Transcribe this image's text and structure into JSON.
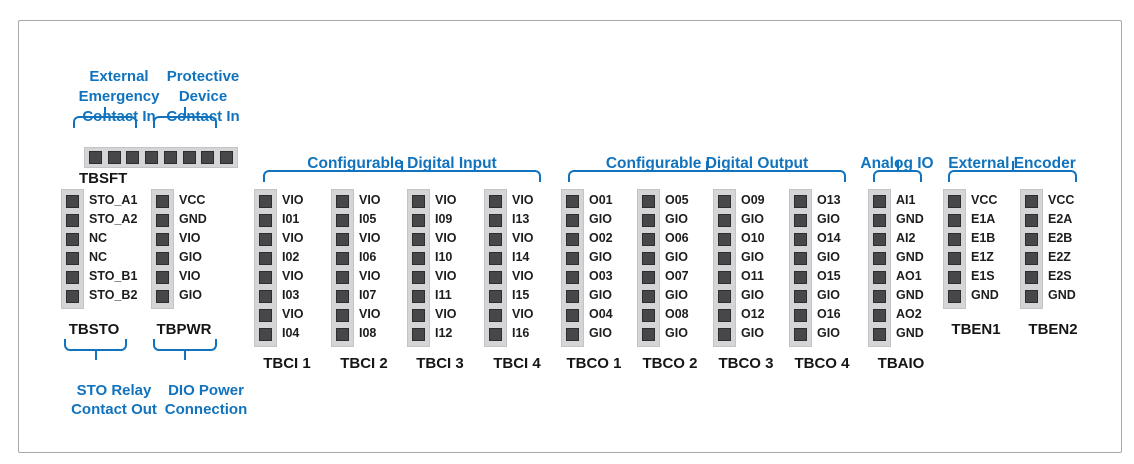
{
  "palette": {
    "blue": "#1173bd",
    "black": "#1d1d1f",
    "pin_fill": "#47474a",
    "pin_border": "#2d2d30",
    "strip_bg": "#d5d5d7",
    "frame_border": "#a9a9ab"
  },
  "tbsft": {
    "name": "TBSFT",
    "pin_count": 8,
    "callouts": [
      {
        "lines": [
          "External",
          "Emergency",
          "Contact In"
        ]
      },
      {
        "lines": [
          "Protective",
          "Device",
          "Contact In"
        ]
      }
    ]
  },
  "left_blocks": [
    {
      "name": "TBSTO",
      "pins": [
        "STO_A1",
        "STO_A2",
        "NC",
        "NC",
        "STO_B1",
        "STO_B2"
      ],
      "callout_lines": [
        "STO Relay",
        "Contact Out"
      ]
    },
    {
      "name": "TBPWR",
      "pins": [
        "VCC",
        "GND",
        "VIO",
        "GIO",
        "VIO",
        "GIO"
      ],
      "callout_lines": [
        "DIO Power",
        "Connection"
      ]
    }
  ],
  "groups": [
    {
      "header": "Configurable Digital Input",
      "columns": [
        {
          "name": "TBCI 1",
          "pins": [
            "VIO",
            "I01",
            "VIO",
            "I02",
            "VIO",
            "I03",
            "VIO",
            "I04"
          ]
        },
        {
          "name": "TBCI 2",
          "pins": [
            "VIO",
            "I05",
            "VIO",
            "I06",
            "VIO",
            "I07",
            "VIO",
            "I08"
          ]
        },
        {
          "name": "TBCI 3",
          "pins": [
            "VIO",
            "I09",
            "VIO",
            "I10",
            "VIO",
            "I11",
            "VIO",
            "I12"
          ]
        },
        {
          "name": "TBCI 4",
          "pins": [
            "VIO",
            "I13",
            "VIO",
            "I14",
            "VIO",
            "I15",
            "VIO",
            "I16"
          ]
        }
      ]
    },
    {
      "header": "Configurable Digital Output",
      "columns": [
        {
          "name": "TBCO 1",
          "pins": [
            "O01",
            "GIO",
            "O02",
            "GIO",
            "O03",
            "GIO",
            "O04",
            "GIO"
          ]
        },
        {
          "name": "TBCO 2",
          "pins": [
            "O05",
            "GIO",
            "O06",
            "GIO",
            "O07",
            "GIO",
            "O08",
            "GIO"
          ]
        },
        {
          "name": "TBCO 3",
          "pins": [
            "O09",
            "GIO",
            "O10",
            "GIO",
            "O11",
            "GIO",
            "O12",
            "GIO"
          ]
        },
        {
          "name": "TBCO 4",
          "pins": [
            "O13",
            "GIO",
            "O14",
            "GIO",
            "O15",
            "GIO",
            "O16",
            "GIO"
          ]
        }
      ]
    },
    {
      "header": "Analog IO",
      "columns": [
        {
          "name": "TBAIO",
          "pins": [
            "AI1",
            "GND",
            "AI2",
            "GND",
            "AO1",
            "GND",
            "AO2",
            "GND"
          ]
        }
      ]
    },
    {
      "header": "External Encoder",
      "columns": [
        {
          "name": "TBEN1",
          "pins": [
            "VCC",
            "E1A",
            "E1B",
            "E1Z",
            "E1S",
            "GND"
          ]
        },
        {
          "name": "TBEN2",
          "pins": [
            "VCC",
            "E2A",
            "E2B",
            "E2Z",
            "E2S",
            "GND"
          ]
        }
      ]
    }
  ]
}
